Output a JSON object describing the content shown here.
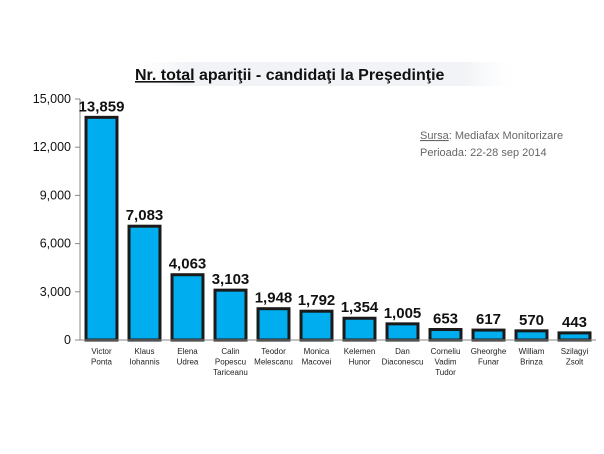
{
  "chart_data": {
    "type": "bar",
    "title_underlined": "Nr. total",
    "title_rest": " apariţii -  candidaţi la Preşedinţie",
    "source_prefix": "Sursa",
    "source_rest": ": Mediafax Monitorizare",
    "period": "Perioada: 22-28 sep 2014",
    "categories": [
      [
        "Victor",
        "Ponta"
      ],
      [
        "Klaus",
        "Iohannis"
      ],
      [
        "Elena",
        "Udrea"
      ],
      [
        "Calin",
        "Popescu",
        "Tariceanu"
      ],
      [
        "Teodor",
        "Melescanu"
      ],
      [
        "Monica",
        "Macovei"
      ],
      [
        "Kelemen",
        "Hunor"
      ],
      [
        "Dan",
        "Diaconescu"
      ],
      [
        "Corneliu",
        "Vadim",
        "Tudor"
      ],
      [
        "Gheorghe",
        "Funar"
      ],
      [
        "William",
        "Brinza"
      ],
      [
        "Szilagyi",
        "Zsolt"
      ]
    ],
    "values": [
      13859,
      7083,
      4063,
      3103,
      1948,
      1792,
      1354,
      1005,
      653,
      617,
      570,
      443
    ],
    "value_labels": [
      "13,859",
      "7,083",
      "4,063",
      "3,103",
      "1,948",
      "1,792",
      "1,354",
      "1,005",
      "653",
      "617",
      "570",
      "443"
    ],
    "yticks": [
      0,
      3000,
      6000,
      9000,
      12000,
      15000
    ],
    "ytick_labels": [
      "0",
      "3,000",
      "6,000",
      "9,000",
      "12,000",
      "15,000"
    ],
    "ylim": [
      0,
      15000
    ],
    "grid": false,
    "bar_color": "#00aeef",
    "bar_edge_color": "#1a1a1a"
  }
}
